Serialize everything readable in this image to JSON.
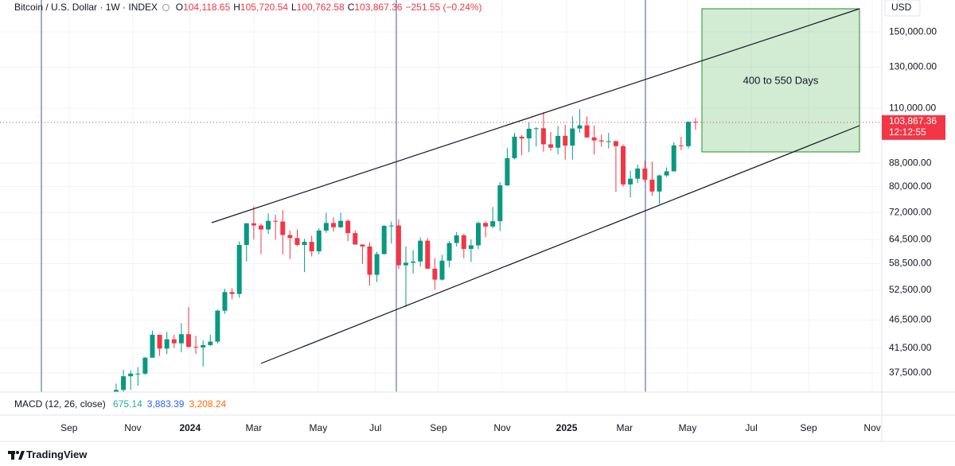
{
  "chart_data": {
    "type": "candlestick",
    "legend": {
      "symbol": "Bitcoin / U.S. Dollar · 1W · INDEX",
      "ohlc": [
        {
          "key": "O",
          "value": "104,118.65"
        },
        {
          "key": "H",
          "value": "105,720.54"
        },
        {
          "key": "L",
          "value": "100,762.58"
        },
        {
          "key": "C",
          "value": "103,867.36"
        }
      ],
      "change": "−251.55 (−0.24%)"
    },
    "y_axis_unit": "USD",
    "log_scale": true,
    "grid": true,
    "colors": {
      "up": "#089981",
      "down": "#f23645"
    },
    "open": [
      34500,
      35000,
      37000,
      37400,
      37400,
      39900,
      43800,
      41400,
      43000,
      42300,
      43900,
      41700,
      41600,
      42000,
      42600,
      48300,
      52100,
      51700,
      63100,
      68900,
      68300,
      67200,
      69600,
      69400,
      65700,
      64900,
      63100,
      63900,
      61500,
      66900,
      69000,
      67800,
      69600,
      66200,
      63200,
      62700,
      55900,
      60800,
      68200,
      68300,
      58100,
      58700,
      59000,
      64200,
      57300,
      54800,
      59200,
      63600,
      65600,
      62100,
      63000,
      69000,
      68000,
      69500,
      80400,
      89800,
      98000,
      97300,
      101200,
      101400,
      95000,
      93700,
      98300,
      94500,
      101300,
      102600,
      97700,
      96500,
      96100,
      96200,
      94300,
      80700,
      82600,
      86100,
      82300,
      78400,
      83700,
      85100,
      94600,
      94300,
      104118.65
    ],
    "high": [
      35900,
      38000,
      37900,
      38400,
      40000,
      44500,
      43800,
      44300,
      43800,
      45900,
      49000,
      43600,
      42800,
      43800,
      48500,
      52800,
      52900,
      64000,
      69000,
      73800,
      68900,
      71700,
      71300,
      72700,
      66900,
      67200,
      64700,
      65500,
      67500,
      71900,
      70600,
      71900,
      70000,
      66900,
      63300,
      63800,
      61400,
      68400,
      69400,
      70000,
      62700,
      61800,
      65000,
      64900,
      59800,
      60600,
      64100,
      66500,
      66000,
      64500,
      69400,
      69500,
      73600,
      81500,
      93500,
      99600,
      98700,
      104000,
      101900,
      108300,
      99900,
      102300,
      102700,
      106400,
      109600,
      106400,
      102500,
      98800,
      99500,
      96500,
      95000,
      85300,
      87500,
      88800,
      88500,
      84000,
      86500,
      95800,
      97900,
      104300,
      105720.54
    ],
    "low": [
      34100,
      34500,
      35000,
      35600,
      37200,
      39900,
      40200,
      40500,
      41500,
      40800,
      41500,
      40500,
      38500,
      41800,
      42300,
      47700,
      50600,
      50900,
      59000,
      64500,
      60800,
      66000,
      64500,
      60700,
      59600,
      62800,
      56500,
      60200,
      60800,
      66300,
      66600,
      67600,
      64100,
      63200,
      58400,
      53500,
      54300,
      60700,
      63500,
      57200,
      49100,
      56200,
      57800,
      57200,
      52600,
      54600,
      57600,
      62700,
      59800,
      58900,
      62000,
      65100,
      67500,
      66800,
      80200,
      89400,
      90800,
      92000,
      94200,
      92200,
      92500,
      91200,
      89300,
      89300,
      99500,
      97500,
      91200,
      94100,
      93400,
      78300,
      80000,
      76600,
      81200,
      81600,
      77100,
      74500,
      83200,
      85100,
      92800,
      93400,
      100762.58
    ],
    "close": [
      35000,
      37000,
      37400,
      37400,
      39900,
      43800,
      41400,
      43000,
      42300,
      43900,
      41700,
      41600,
      42000,
      42600,
      48300,
      52100,
      51700,
      63100,
      68900,
      68300,
      67200,
      69600,
      69400,
      65700,
      64900,
      63100,
      63900,
      61500,
      66900,
      69000,
      67800,
      69600,
      66200,
      63200,
      62700,
      55900,
      60800,
      68200,
      68300,
      58100,
      58700,
      59000,
      64200,
      57300,
      54800,
      59200,
      63600,
      65600,
      62100,
      63000,
      69000,
      68000,
      69500,
      80400,
      89800,
      98000,
      97300,
      101200,
      101400,
      95000,
      93700,
      98300,
      94500,
      101300,
      102600,
      97700,
      96500,
      96100,
      96200,
      94300,
      80700,
      82600,
      86100,
      82300,
      78400,
      83700,
      85100,
      94600,
      94300,
      104100,
      103867.36
    ],
    "last_price": {
      "value": 103867.36,
      "label": "103,867.36",
      "countdown": "12:12:55"
    },
    "ylim": [
      34700,
      170800
    ],
    "yticks": [
      {
        "value": 150000,
        "label": "150,000.00"
      },
      {
        "value": 130000,
        "label": "130,000.00"
      },
      {
        "value": 110000,
        "label": "110,000.00"
      },
      {
        "value": 88000,
        "label": "88,000.00"
      },
      {
        "value": 80000,
        "label": "80,000.00"
      },
      {
        "value": 72000,
        "label": "72,000.00"
      },
      {
        "value": 64500,
        "label": "64,500.00"
      },
      {
        "value": 58500,
        "label": "58,500.00"
      },
      {
        "value": 52500,
        "label": "52,500.00"
      },
      {
        "value": 46500,
        "label": "46,500.00"
      },
      {
        "value": 41500,
        "label": "41,500.00"
      },
      {
        "value": 37500,
        "label": "37,500.00"
      }
    ],
    "xlim": [
      -16.04,
      105.71
    ],
    "xticks": [
      {
        "value": -6.5,
        "label": "Sep"
      },
      {
        "value": 2.3,
        "label": "Nov"
      },
      {
        "value": 10.2,
        "label": "2024"
      },
      {
        "value": 19.0,
        "label": "Mar"
      },
      {
        "value": 27.9,
        "label": "May"
      },
      {
        "value": 35.8,
        "label": "Jul"
      },
      {
        "value": 44.5,
        "label": "Sep"
      },
      {
        "value": 53.3,
        "label": "Nov"
      },
      {
        "value": 62.2,
        "label": "2025"
      },
      {
        "value": 70.2,
        "label": "Mar"
      },
      {
        "value": 78.9,
        "label": "May"
      },
      {
        "value": 87.7,
        "label": "Jul"
      },
      {
        "value": 95.6,
        "label": "Sep"
      },
      {
        "value": 104.4,
        "label": "Nov"
      }
    ],
    "annotations": [
      "400 to 550 Days"
    ],
    "indicator": {
      "name": "MACD (12, 26, close)",
      "values": [
        {
          "label": "675.14",
          "color": "#22ab94"
        },
        {
          "label": "3,883.39",
          "color": "#2962ff"
        },
        {
          "label": "3,208.24",
          "color": "#ff6d00"
        }
      ]
    },
    "brand": "TradingView"
  }
}
